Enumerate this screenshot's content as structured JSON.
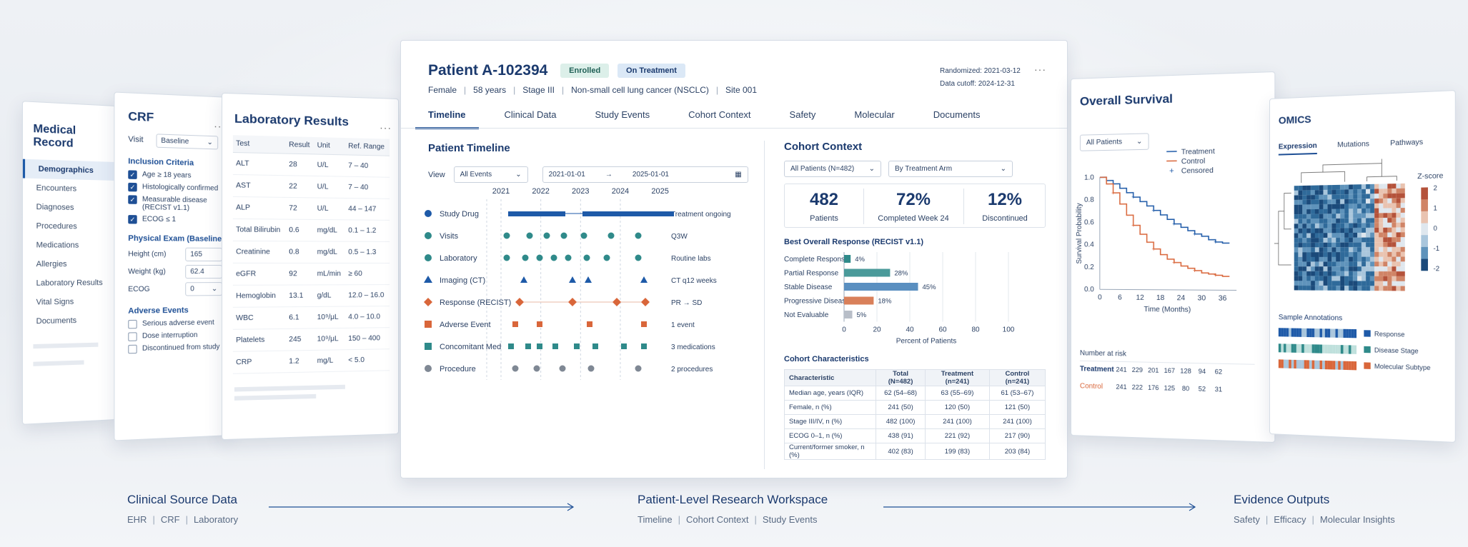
{
  "medical_record": {
    "title": "Medical Record",
    "items": [
      "Demographics",
      "Encounters",
      "Diagnoses",
      "Procedures",
      "Medications",
      "Allergies",
      "Laboratory Results",
      "Vital Signs",
      "Documents"
    ]
  },
  "crf": {
    "title": "CRF",
    "visit_label": "Visit",
    "visit_value": "Baseline",
    "inclusion_title": "Inclusion Criteria",
    "criteria": [
      "Age ≥ 18 years",
      "Histologically confirmed",
      "Measurable disease (RECIST v1.1)",
      "ECOG ≤ 1"
    ],
    "exam_title": "Physical Exam (Baseline)",
    "height_label": "Height (cm)",
    "height_value": "165",
    "weight_label": "Weight (kg)",
    "weight_value": "62.4",
    "ecog_label": "ECOG",
    "ecog_value": "0",
    "ae_title": "Adverse Events",
    "ae_items": [
      "Serious adverse event",
      "Dose interruption",
      "Discontinued from study"
    ]
  },
  "lab": {
    "title": "Laboratory Results",
    "headers": [
      "Test",
      "Result",
      "Unit",
      "Ref. Range"
    ],
    "rows": [
      [
        "ALT",
        "28",
        "U/L",
        "7 – 40"
      ],
      [
        "AST",
        "22",
        "U/L",
        "7 – 40"
      ],
      [
        "ALP",
        "72",
        "U/L",
        "44 – 147"
      ],
      [
        "Total Bilirubin",
        "0.6",
        "mg/dL",
        "0.1 – 1.2"
      ],
      [
        "Creatinine",
        "0.8",
        "mg/dL",
        "0.5 – 1.3"
      ],
      [
        "eGFR",
        "92",
        "mL/min",
        "≥ 60"
      ],
      [
        "Hemoglobin",
        "13.1",
        "g/dL",
        "12.0 – 16.0"
      ],
      [
        "WBC",
        "6.1",
        "10⁹/μL",
        "4.0 – 10.0"
      ],
      [
        "Platelets",
        "245",
        "10⁹/μL",
        "150 – 400"
      ],
      [
        "CRP",
        "1.2",
        "mg/L",
        "< 5.0"
      ]
    ]
  },
  "patient": {
    "name": "Patient A-102394",
    "badge1": "Enrolled",
    "badge2": "On Treatment",
    "sex": "Female",
    "age": "58 years",
    "stage": "Stage III",
    "diagnosis": "Non-small cell lung cancer (NSCLC)",
    "site": "Site 001",
    "randomized": "Randomized: 2021-03-12",
    "cutoff": "Data cutoff: 2024-12-31"
  },
  "tabs": [
    "Timeline",
    "Clinical Data",
    "Study Events",
    "Cohort Context",
    "Safety",
    "Molecular",
    "Documents"
  ],
  "timeline": {
    "title": "Patient Timeline",
    "view_label": "View",
    "view_value": "All Events",
    "date_from": "2021-01-01",
    "arrow": "→",
    "date_to": "2025-01-01",
    "years": [
      "2021",
      "2022",
      "2023",
      "2024",
      "2025"
    ],
    "rows": [
      {
        "label": "Study Drug",
        "note": "Treatment ongoing",
        "color": "#1e5aa8",
        "shape": "circle"
      },
      {
        "label": "Visits",
        "note": "Q3W",
        "color": "#2f8a8a",
        "shape": "circle"
      },
      {
        "label": "Laboratory",
        "note": "Routine labs",
        "color": "#2f8a8a",
        "shape": "circle"
      },
      {
        "label": "Imaging (CT)",
        "note": "CT q12 weeks",
        "color": "#1e5aa8",
        "shape": "triangle"
      },
      {
        "label": "Response (RECIST)",
        "note": "PR → SD",
        "color": "#d9663a",
        "shape": "diamond"
      },
      {
        "label": "Adverse Event",
        "note": "1 event",
        "color": "#d9663a",
        "shape": "square"
      },
      {
        "label": "Concomitant Med",
        "note": "3 medications",
        "color": "#2f8a8a",
        "shape": "square"
      },
      {
        "label": "Procedure",
        "note": "2 procedures",
        "color": "#7f8894",
        "shape": "circle"
      }
    ]
  },
  "cohort": {
    "title": "Cohort Context",
    "filter1": "All Patients (N=482)",
    "filter2": "By Treatment Arm",
    "metrics": [
      {
        "value": "482",
        "label": "Patients"
      },
      {
        "value": "72%",
        "label": "Completed Week 24"
      },
      {
        "value": "12%",
        "label": "Discontinued"
      }
    ],
    "table_title": "Cohort Characteristics",
    "table_headers": [
      "Characteristic",
      "Total (N=482)",
      "Treatment (n=241)",
      "Control (n=241)"
    ],
    "table_rows": [
      [
        "Median age, years (IQR)",
        "62 (54–68)",
        "63 (55–69)",
        "61 (53–67)"
      ],
      [
        "Female, n (%)",
        "241 (50)",
        "120 (50)",
        "121 (50)"
      ],
      [
        "Stage III/IV, n (%)",
        "482 (100)",
        "241 (100)",
        "241 (100)"
      ],
      [
        "ECOG 0–1, n (%)",
        "438 (91)",
        "221 (92)",
        "217 (90)"
      ],
      [
        "Current/former smoker, n (%)",
        "402 (83)",
        "199 (83)",
        "203 (84)"
      ]
    ]
  },
  "chart_data": [
    {
      "type": "bar",
      "title": "Best Overall Response (RECIST v1.1)",
      "categories": [
        "Complete Response",
        "Partial Response",
        "Stable Disease",
        "Progressive Disease",
        "Not Evaluable"
      ],
      "values": [
        4,
        28,
        45,
        18,
        5
      ],
      "value_labels": [
        "4%",
        "28%",
        "45%",
        "18%",
        "5%"
      ],
      "colors": [
        "#2f8a8a",
        "#4a9a9a",
        "#5a8fc0",
        "#d9805a",
        "#b8bec8"
      ],
      "xlabel": "Percent of Patients",
      "xticks": [
        "0",
        "20",
        "40",
        "60",
        "80",
        "100"
      ],
      "xlim": [
        0,
        100
      ]
    },
    {
      "type": "line",
      "title": "Overall Survival",
      "filter": "All Patients",
      "ylabel": "Survival Probability",
      "xlabel": "Time (Months)",
      "xticks": [
        "0",
        "6",
        "12",
        "18",
        "24",
        "30",
        "36"
      ],
      "yticks": [
        "1.0",
        "0.8",
        "0.6",
        "0.4",
        "0.2",
        "0.0"
      ],
      "xlim": [
        0,
        40
      ],
      "ylim": [
        0,
        1
      ],
      "legend": [
        "Treatment",
        "Control",
        "Censored"
      ],
      "series": [
        {
          "name": "Treatment",
          "color": "#1e5aa8",
          "x": [
            0,
            2,
            4,
            6,
            8,
            10,
            12,
            14,
            16,
            18,
            20,
            22,
            24,
            26,
            28,
            30,
            32,
            34,
            36,
            38
          ],
          "y": [
            1.0,
            0.97,
            0.94,
            0.9,
            0.86,
            0.82,
            0.78,
            0.74,
            0.7,
            0.66,
            0.62,
            0.58,
            0.55,
            0.52,
            0.49,
            0.47,
            0.44,
            0.42,
            0.41,
            0.41
          ]
        },
        {
          "name": "Control",
          "color": "#d9663a",
          "x": [
            0,
            2,
            4,
            6,
            8,
            10,
            12,
            14,
            16,
            18,
            20,
            22,
            24,
            26,
            28,
            30,
            32,
            34,
            36,
            38
          ],
          "y": [
            1.0,
            0.94,
            0.86,
            0.76,
            0.66,
            0.57,
            0.49,
            0.42,
            0.36,
            0.31,
            0.27,
            0.24,
            0.21,
            0.19,
            0.17,
            0.15,
            0.14,
            0.13,
            0.12,
            0.12
          ]
        }
      ],
      "risk_title": "Number at risk",
      "risk": [
        {
          "name": "Treatment",
          "values": [
            "241",
            "229",
            "201",
            "167",
            "128",
            "94",
            "62"
          ]
        },
        {
          "name": "Control",
          "values": [
            "241",
            "222",
            "176",
            "125",
            "80",
            "52",
            "31"
          ]
        }
      ]
    }
  ],
  "omics": {
    "title": "OMICS",
    "tabs": [
      "Expression",
      "Mutations",
      "Pathways"
    ],
    "zscore": "Z-score",
    "zticks": [
      "2",
      "1",
      "0",
      "-1",
      "-2"
    ],
    "annot_title": "Sample Annotations",
    "annots": [
      "Response",
      "Disease Stage",
      "Molecular Subtype"
    ]
  },
  "footer": [
    {
      "title": "Clinical Source Data",
      "items": [
        "EHR",
        "CRF",
        "Laboratory"
      ]
    },
    {
      "title": "Patient-Level Research Workspace",
      "items": [
        "Timeline",
        "Cohort Context",
        "Study Events"
      ]
    },
    {
      "title": "Evidence Outputs",
      "items": [
        "Safety",
        "Efficacy",
        "Molecular Insights"
      ]
    }
  ]
}
